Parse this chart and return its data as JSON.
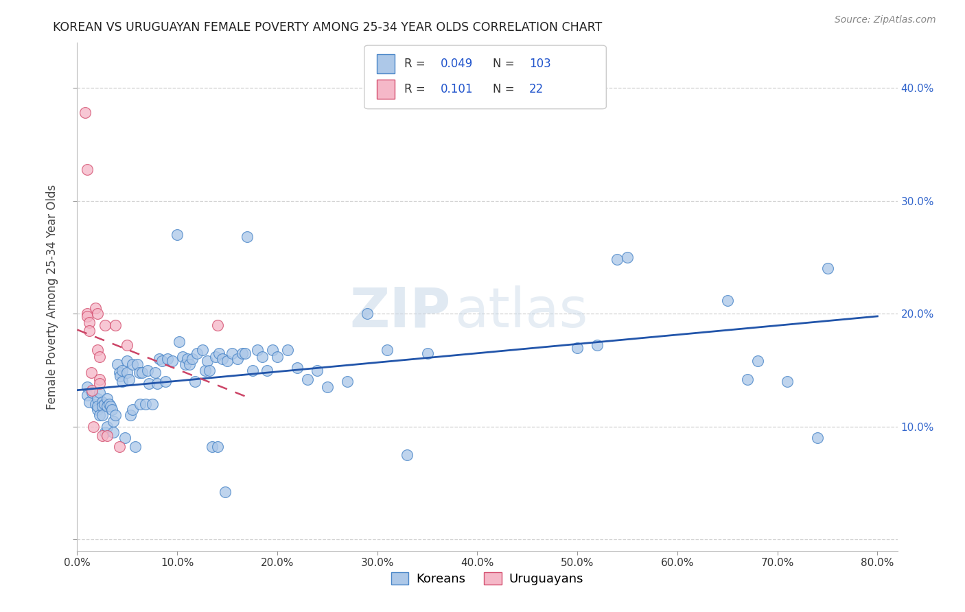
{
  "title": "KOREAN VS URUGUAYAN FEMALE POVERTY AMONG 25-34 YEAR OLDS CORRELATION CHART",
  "source": "Source: ZipAtlas.com",
  "ylabel": "Female Poverty Among 25-34 Year Olds",
  "xlim": [
    0.0,
    0.82
  ],
  "ylim": [
    -0.01,
    0.44
  ],
  "xtick_vals": [
    0.0,
    0.1,
    0.2,
    0.3,
    0.4,
    0.5,
    0.6,
    0.7,
    0.8
  ],
  "xticklabels": [
    "0.0%",
    "10.0%",
    "20.0%",
    "30.0%",
    "40.0%",
    "50.0%",
    "60.0%",
    "70.0%",
    "80.0%"
  ],
  "ytick_vals": [
    0.0,
    0.1,
    0.2,
    0.3,
    0.4
  ],
  "yticklabels_right": [
    "",
    "10.0%",
    "20.0%",
    "30.0%",
    "40.0%"
  ],
  "korean_face": "#adc8e8",
  "korean_edge": "#4a86c8",
  "uruguayan_face": "#f5b8c8",
  "uruguayan_edge": "#d45070",
  "korean_line": "#2255aa",
  "uruguayan_line": "#cc4466",
  "korean_R": 0.049,
  "korean_N": 103,
  "uruguayan_R": 0.101,
  "uruguayan_N": 22,
  "legend_label_korean": "Koreans",
  "legend_label_uruguayan": "Uruguayans",
  "watermark_zip": "ZIP",
  "watermark_atlas": "atlas",
  "koreans_x": [
    0.01,
    0.01,
    0.012,
    0.015,
    0.018,
    0.02,
    0.02,
    0.02,
    0.022,
    0.022,
    0.025,
    0.025,
    0.025,
    0.027,
    0.028,
    0.03,
    0.03,
    0.03,
    0.032,
    0.033,
    0.035,
    0.036,
    0.036,
    0.038,
    0.04,
    0.042,
    0.043,
    0.045,
    0.045,
    0.048,
    0.05,
    0.05,
    0.052,
    0.053,
    0.055,
    0.055,
    0.058,
    0.06,
    0.062,
    0.063,
    0.065,
    0.068,
    0.07,
    0.072,
    0.075,
    0.078,
    0.08,
    0.082,
    0.085,
    0.088,
    0.09,
    0.095,
    0.1,
    0.102,
    0.105,
    0.108,
    0.11,
    0.112,
    0.115,
    0.118,
    0.12,
    0.125,
    0.128,
    0.13,
    0.132,
    0.135,
    0.138,
    0.14,
    0.142,
    0.145,
    0.148,
    0.15,
    0.155,
    0.16,
    0.165,
    0.168,
    0.17,
    0.175,
    0.18,
    0.185,
    0.19,
    0.195,
    0.2,
    0.21,
    0.22,
    0.23,
    0.24,
    0.25,
    0.27,
    0.29,
    0.31,
    0.33,
    0.35,
    0.5,
    0.52,
    0.54,
    0.55,
    0.65,
    0.67,
    0.68,
    0.71,
    0.74,
    0.75
  ],
  "koreans_y": [
    0.135,
    0.128,
    0.122,
    0.13,
    0.12,
    0.125,
    0.115,
    0.118,
    0.13,
    0.11,
    0.122,
    0.118,
    0.11,
    0.12,
    0.095,
    0.125,
    0.118,
    0.1,
    0.12,
    0.118,
    0.115,
    0.105,
    0.095,
    0.11,
    0.155,
    0.148,
    0.145,
    0.15,
    0.14,
    0.09,
    0.158,
    0.148,
    0.142,
    0.11,
    0.155,
    0.115,
    0.082,
    0.155,
    0.148,
    0.12,
    0.148,
    0.12,
    0.15,
    0.138,
    0.12,
    0.148,
    0.138,
    0.16,
    0.158,
    0.14,
    0.16,
    0.158,
    0.27,
    0.175,
    0.162,
    0.155,
    0.16,
    0.155,
    0.16,
    0.14,
    0.165,
    0.168,
    0.15,
    0.158,
    0.15,
    0.082,
    0.162,
    0.082,
    0.165,
    0.16,
    0.042,
    0.158,
    0.165,
    0.16,
    0.165,
    0.165,
    0.268,
    0.15,
    0.168,
    0.162,
    0.15,
    0.168,
    0.162,
    0.168,
    0.152,
    0.142,
    0.15,
    0.135,
    0.14,
    0.2,
    0.168,
    0.075,
    0.165,
    0.17,
    0.172,
    0.248,
    0.25,
    0.212,
    0.142,
    0.158,
    0.14,
    0.09,
    0.24
  ],
  "uruguayans_x": [
    0.008,
    0.01,
    0.01,
    0.01,
    0.012,
    0.012,
    0.014,
    0.015,
    0.016,
    0.018,
    0.02,
    0.02,
    0.022,
    0.022,
    0.022,
    0.025,
    0.028,
    0.03,
    0.038,
    0.042,
    0.05,
    0.14
  ],
  "uruguayans_y": [
    0.378,
    0.328,
    0.2,
    0.198,
    0.192,
    0.185,
    0.148,
    0.132,
    0.1,
    0.205,
    0.2,
    0.168,
    0.162,
    0.142,
    0.138,
    0.092,
    0.19,
    0.092,
    0.19,
    0.082,
    0.172,
    0.19
  ],
  "background_color": "#ffffff",
  "grid_color": "#cccccc"
}
